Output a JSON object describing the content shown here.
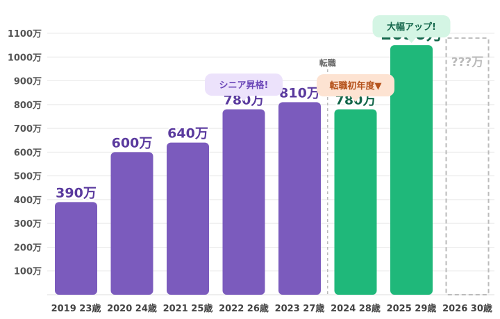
{
  "chart_data": {
    "type": "bar",
    "categories": [
      "2019 23歳",
      "2020 24歳",
      "2021 25歳",
      "2022 26歳",
      "2023 27歳",
      "2024 28歳",
      "2025 29歳",
      "2026 30歳"
    ],
    "values": [
      390,
      600,
      640,
      780,
      810,
      780,
      1050,
      null
    ],
    "value_labels": [
      "390万",
      "600万",
      "640万",
      "780万",
      "810万",
      "780万",
      "1050万",
      "???万"
    ],
    "yticks": [
      100,
      200,
      300,
      400,
      500,
      600,
      700,
      800,
      900,
      1000,
      1100
    ],
    "ytick_labels": [
      "100万",
      "200万",
      "300万",
      "400万",
      "500万",
      "600万",
      "700万",
      "800万",
      "900万",
      "1000万",
      "1100万"
    ],
    "ylim": [
      0,
      1100
    ],
    "grid": true,
    "colors": {
      "before_change": "#7b5bbd",
      "after_change": "#1fb87a",
      "unknown": "#bbbbbb",
      "grid": "#e8e8e8",
      "divider": "#bbbbbb"
    },
    "divider": {
      "after_category_index": 4,
      "label": "転職"
    },
    "annotations": [
      {
        "category_index": 3,
        "text": "シニア昇格!",
        "bg": "#ece2fb",
        "color": "#6b46b8"
      },
      {
        "category_index": 5,
        "text": "転職初年度▼",
        "bg": "#fde3d2",
        "color": "#b5521b"
      },
      {
        "category_index": 6,
        "text": "大幅アップ!",
        "bg": "#d4f5e4",
        "color": "#13664a"
      }
    ]
  }
}
